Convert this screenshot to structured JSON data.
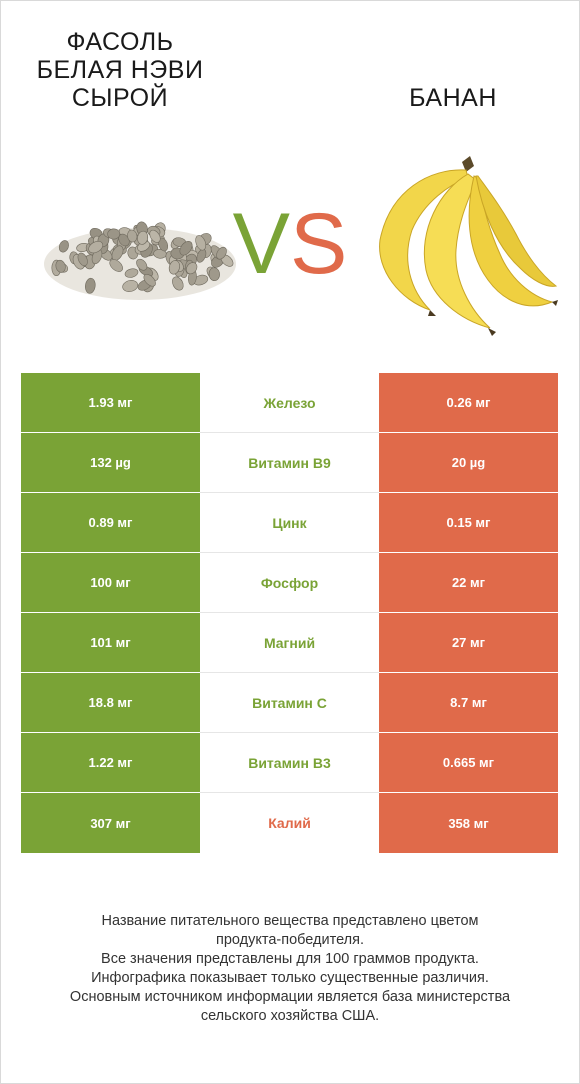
{
  "left_product": {
    "name": "Фасоль белая нэви сырой"
  },
  "right_product": {
    "name": "Банан"
  },
  "vs": {
    "v": "V",
    "s": "S"
  },
  "colors": {
    "left": "#7aa336",
    "right": "#e06a4a"
  },
  "rows": [
    {
      "nutrient": "Железо",
      "left": "1.93 мг",
      "right": "0.26 мг",
      "winner": "left"
    },
    {
      "nutrient": "Витамин B9",
      "left": "132 µg",
      "right": "20 µg",
      "winner": "left"
    },
    {
      "nutrient": "Цинк",
      "left": "0.89 мг",
      "right": "0.15 мг",
      "winner": "left"
    },
    {
      "nutrient": "Фосфор",
      "left": "100 мг",
      "right": "22 мг",
      "winner": "left"
    },
    {
      "nutrient": "Магний",
      "left": "101 мг",
      "right": "27 мг",
      "winner": "left"
    },
    {
      "nutrient": "Витамин C",
      "left": "18.8 мг",
      "right": "8.7 мг",
      "winner": "left"
    },
    {
      "nutrient": "Витамин B3",
      "left": "1.22 мг",
      "right": "0.665 мг",
      "winner": "left"
    },
    {
      "nutrient": "Калий",
      "left": "307 мг",
      "right": "358 мг",
      "winner": "right"
    }
  ],
  "footer": {
    "line1": "Название питательного вещества представлено цветом",
    "line2": "продукта-победителя.",
    "line3": "Все значения представлены для 100 граммов продукта.",
    "line4": "Инфографика показывает только существенные различия.",
    "line5": "Основным источником информации является база министерства",
    "line6": "сельского хозяйства США."
  }
}
